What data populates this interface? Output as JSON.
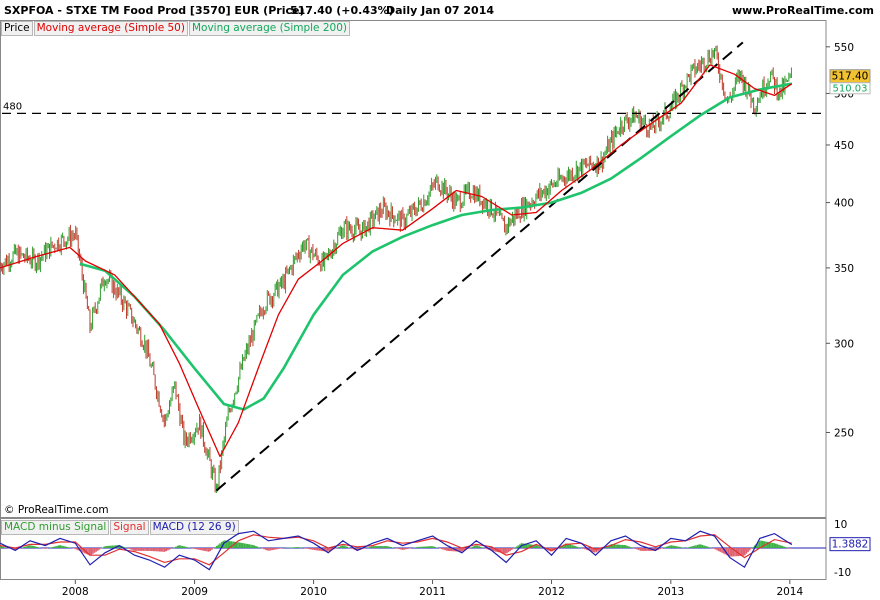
{
  "header": {
    "title": "SXPFOA - STXE TM Food Prod [3570] EUR (Price)",
    "last": "517.40 (+0.43%)",
    "period": "Daily  Jan 07 2014",
    "site": "www.ProRealTime.com"
  },
  "legend": {
    "price": "Price",
    "ma50": "Moving average (Simple 50)",
    "ma200": "Moving average (Simple 200)"
  },
  "macd_legend": {
    "hist": "MACD minus Signal",
    "signal": "Signal",
    "macd": "MACD (12 26 9)"
  },
  "copyright": "© ProRealTime.com",
  "colors": {
    "price_up": "#2e9e2e",
    "price_down": "#c0392b",
    "ma50": "#e00000",
    "ma200": "#1ec46b",
    "macd": "#2020b0",
    "signal": "#e03030",
    "hist_pos": "#3cb043",
    "hist_neg": "#e06070",
    "last_badge": "#f2c230"
  },
  "chart_data": {
    "type": "line",
    "y_scale": "log",
    "ylim": [
      220,
      560
    ],
    "y_ticks": [
      250,
      300,
      350,
      400,
      450,
      500,
      550
    ],
    "x_ticks": [
      "2008",
      "2009",
      "2010",
      "2011",
      "2012",
      "2013",
      "2014"
    ],
    "x_tick_dates": [
      "2008-01-01",
      "2009-01-01",
      "2010-01-01",
      "2011-01-01",
      "2012-01-01",
      "2013-01-01",
      "2014-01-01"
    ],
    "x_range": [
      "2007-05-15",
      "2014-01-20"
    ],
    "last_price": 517.4,
    "last_price_label": "517.40",
    "ma_label": "510.03",
    "support_level": 480,
    "support_label": "480",
    "series": [
      {
        "name": "Price",
        "x": [
          "2007-05-15",
          "2007-07-01",
          "2007-09-01",
          "2007-11-01",
          "2008-01-01",
          "2008-02-15",
          "2008-04-01",
          "2008-06-01",
          "2008-08-01",
          "2008-10-01",
          "2008-11-01",
          "2008-12-01",
          "2009-01-15",
          "2009-03-09",
          "2009-04-15",
          "2009-06-01",
          "2009-08-01",
          "2009-10-01",
          "2009-12-01",
          "2010-02-01",
          "2010-04-01",
          "2010-06-01",
          "2010-08-01",
          "2010-10-01",
          "2010-12-01",
          "2011-01-15",
          "2011-03-15",
          "2011-05-01",
          "2011-07-01",
          "2011-08-10",
          "2011-10-01",
          "2011-12-01",
          "2012-02-01",
          "2012-04-01",
          "2012-06-01",
          "2012-08-01",
          "2012-09-15",
          "2012-11-01",
          "2013-01-01",
          "2013-03-01",
          "2013-05-15",
          "2013-06-25",
          "2013-08-01",
          "2013-09-15",
          "2013-11-01",
          "2013-12-01",
          "2014-01-07"
        ],
        "values": [
          352,
          360,
          355,
          368,
          375,
          310,
          345,
          325,
          300,
          255,
          275,
          245,
          255,
          222,
          260,
          290,
          325,
          340,
          368,
          352,
          380,
          378,
          395,
          385,
          400,
          418,
          400,
          410,
          395,
          380,
          395,
          408,
          420,
          430,
          435,
          470,
          478,
          465,
          485,
          520,
          545,
          490,
          520,
          488,
          520,
          500,
          517.4
        ]
      },
      {
        "name": "Moving average (Simple 50)",
        "x": [
          "2007-05-15",
          "2007-09-01",
          "2007-12-15",
          "2008-02-01",
          "2008-05-01",
          "2008-07-01",
          "2008-09-15",
          "2008-11-15",
          "2009-01-15",
          "2009-03-20",
          "2009-05-15",
          "2009-07-15",
          "2009-09-15",
          "2009-11-15",
          "2010-02-01",
          "2010-04-01",
          "2010-07-01",
          "2010-10-01",
          "2011-01-01",
          "2011-03-15",
          "2011-06-01",
          "2011-09-01",
          "2011-11-15",
          "2012-02-01",
          "2012-05-01",
          "2012-08-01",
          "2012-11-01",
          "2013-02-01",
          "2013-05-01",
          "2013-07-15",
          "2013-09-15",
          "2013-11-15",
          "2014-01-07"
        ],
        "values": [
          350,
          358,
          365,
          355,
          345,
          330,
          312,
          288,
          262,
          238,
          255,
          285,
          318,
          342,
          356,
          368,
          380,
          378,
          395,
          410,
          405,
          390,
          392,
          410,
          428,
          450,
          470,
          490,
          530,
          520,
          505,
          498,
          510
        ]
      },
      {
        "name": "Moving average (Simple 200)",
        "x": [
          "2008-01-15",
          "2008-04-01",
          "2008-07-01",
          "2008-10-01",
          "2009-01-01",
          "2009-04-01",
          "2009-06-01",
          "2009-08-01",
          "2009-10-01",
          "2010-01-01",
          "2010-04-01",
          "2010-07-01",
          "2010-10-01",
          "2011-01-01",
          "2011-04-01",
          "2011-07-01",
          "2011-10-01",
          "2012-01-01",
          "2012-04-01",
          "2012-07-01",
          "2012-10-01",
          "2013-01-01",
          "2013-04-01",
          "2013-07-01",
          "2013-10-01",
          "2014-01-07"
        ],
        "values": [
          353,
          348,
          330,
          308,
          285,
          265,
          262,
          268,
          285,
          318,
          345,
          362,
          373,
          382,
          390,
          394,
          396,
          400,
          408,
          420,
          438,
          458,
          478,
          496,
          504,
          510
        ]
      }
    ],
    "trendlines": [
      {
        "x": [
          "2009-03-09",
          "2013-08-10"
        ],
        "values": [
          222,
          555
        ]
      }
    ],
    "macd": {
      "ylim": [
        -10,
        10
      ],
      "y_ticks": [
        10,
        -10
      ],
      "last_label": "1.3882",
      "x": [
        "2007-05-15",
        "2007-07-01",
        "2007-08-15",
        "2007-10-01",
        "2007-11-15",
        "2008-01-01",
        "2008-02-15",
        "2008-04-01",
        "2008-05-15",
        "2008-07-01",
        "2008-08-15",
        "2008-10-01",
        "2008-11-15",
        "2009-01-01",
        "2009-02-15",
        "2009-04-01",
        "2009-05-15",
        "2009-07-01",
        "2009-08-15",
        "2009-10-01",
        "2009-11-15",
        "2010-01-01",
        "2010-02-15",
        "2010-04-01",
        "2010-05-15",
        "2010-07-01",
        "2010-08-15",
        "2010-10-01",
        "2010-11-15",
        "2011-01-01",
        "2011-02-15",
        "2011-04-01",
        "2011-05-15",
        "2011-07-01",
        "2011-08-15",
        "2011-10-01",
        "2011-11-15",
        "2012-01-01",
        "2012-02-15",
        "2012-04-01",
        "2012-05-15",
        "2012-07-01",
        "2012-08-15",
        "2012-10-01",
        "2012-11-15",
        "2013-01-01",
        "2013-02-15",
        "2013-04-01",
        "2013-05-15",
        "2013-07-01",
        "2013-08-15",
        "2013-10-01",
        "2013-11-15",
        "2014-01-07"
      ],
      "macd": [
        2,
        -1,
        3,
        1,
        4,
        2,
        -7,
        -2,
        1,
        -3,
        -5,
        -8,
        -3,
        -5,
        -9,
        2,
        6,
        7,
        3,
        4,
        5,
        2,
        -2,
        3,
        -1,
        2,
        4,
        1,
        3,
        5,
        1,
        -2,
        3,
        -1,
        -6,
        1,
        3,
        -3,
        4,
        2,
        -3,
        3,
        5,
        1,
        -1,
        4,
        3,
        7,
        5,
        -4,
        -8,
        4,
        6,
        1.4
      ],
      "signal": [
        1,
        0,
        1.5,
        1.5,
        2.5,
        2.5,
        -3,
        -3,
        -0.5,
        -1.5,
        -3.5,
        -6,
        -4.5,
        -4.5,
        -7,
        -2,
        3,
        5.5,
        4.5,
        4,
        4.5,
        3,
        0,
        1.5,
        0.5,
        1,
        3,
        2,
        2.5,
        4,
        2.5,
        0,
        1.5,
        0.5,
        -3,
        -1.5,
        1.5,
        -1,
        1.5,
        2,
        -0.5,
        1,
        3.5,
        2.5,
        0.5,
        2.5,
        3,
        5,
        5.5,
        0.5,
        -4,
        0,
        3.5,
        2
      ]
    }
  }
}
